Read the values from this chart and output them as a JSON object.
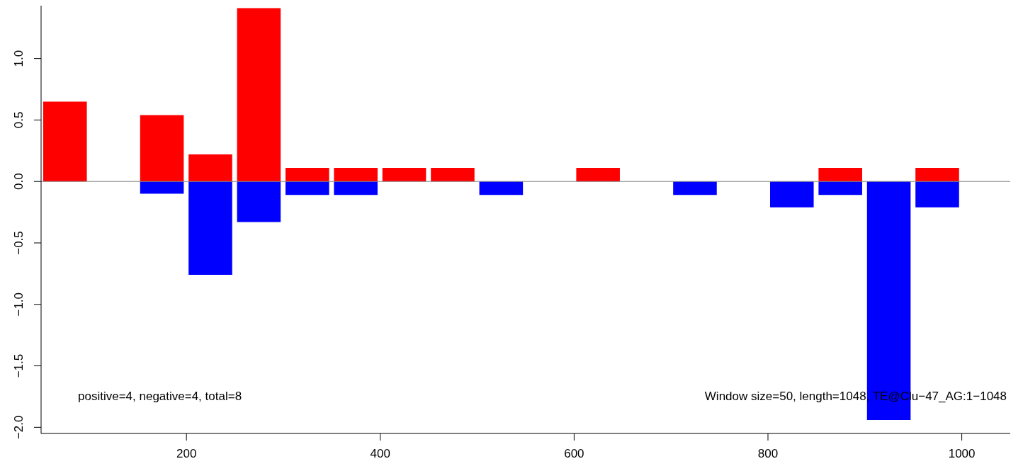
{
  "chart_data": {
    "type": "bar",
    "stacked": true,
    "x": [
      75,
      125,
      175,
      225,
      275,
      325,
      375,
      425,
      475,
      525,
      575,
      625,
      675,
      725,
      775,
      825,
      875,
      925,
      975
    ],
    "series": [
      {
        "color": "#ff0000",
        "values": [
          0.65,
          null,
          0.54,
          0.22,
          1.41,
          0.11,
          0.11,
          0.11,
          0.11,
          null,
          null,
          0.11,
          null,
          null,
          null,
          null,
          0.11,
          null,
          0.11
        ]
      },
      {
        "color": "#0000ff",
        "values": [
          null,
          null,
          -0.1,
          -0.76,
          -0.33,
          -0.11,
          -0.11,
          null,
          null,
          -0.11,
          null,
          null,
          null,
          -0.11,
          null,
          -0.21,
          -0.11,
          -1.94,
          -0.21
        ]
      }
    ],
    "xlim": [
      50,
      1050
    ],
    "xticks": [
      200,
      400,
      600,
      800,
      1000
    ],
    "ylim": [
      -2.05,
      1.43
    ],
    "yticks": [
      {
        "value": -2,
        "label": "−2.0"
      },
      {
        "value": -1.5,
        "label": "−1.5"
      },
      {
        "value": -1,
        "label": "−1.0"
      },
      {
        "value": -0.5,
        "label": "−0.5"
      },
      {
        "value": 0,
        "label": "0.0"
      },
      {
        "value": 0.5,
        "label": "0.5"
      },
      {
        "value": 1,
        "label": "1.0"
      }
    ],
    "ref_lines": [
      {
        "axis": "y",
        "value": 0,
        "color": "#808080"
      }
    ],
    "annotations": [
      "positive=4, negative=4, total=8",
      "Window size=50, length=1048, TE@Clu−47_AG:1−1048"
    ],
    "grid": false,
    "legend": false
  }
}
